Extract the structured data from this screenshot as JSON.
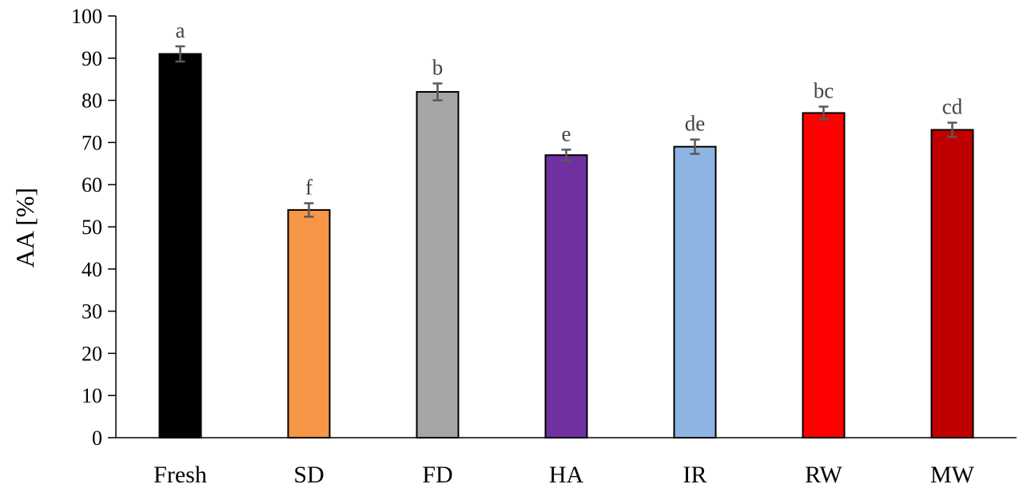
{
  "chart_data": {
    "type": "bar",
    "title": "",
    "xlabel": "",
    "ylabel": "AA [%]",
    "ylim": [
      0,
      100
    ],
    "yticks": [
      0,
      10,
      20,
      30,
      40,
      50,
      60,
      70,
      80,
      90,
      100
    ],
    "grid": false,
    "categories": [
      "Fresh",
      "SD",
      "FD",
      "HA",
      "IR",
      "RW",
      "MW"
    ],
    "values": [
      91,
      54,
      82,
      67,
      69,
      77,
      73
    ],
    "errors": [
      1.8,
      1.6,
      2.0,
      1.3,
      1.7,
      1.5,
      1.7
    ],
    "significance": [
      "a",
      "f",
      "b",
      "e",
      "de",
      "bc",
      "cd"
    ],
    "colors": [
      "#000000",
      "#F79646",
      "#A6A6A6",
      "#7030A0",
      "#8DB4E2",
      "#FF0000",
      "#C00000"
    ],
    "error_bar_color": "#595959",
    "axis_color": "#000000"
  }
}
